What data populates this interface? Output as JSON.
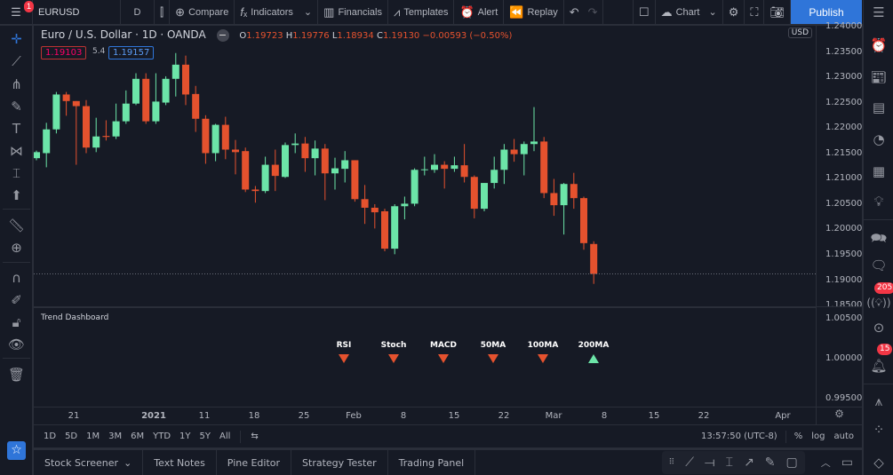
{
  "colors": {
    "up": "#6ce5a8",
    "down": "#e5522e",
    "accent": "#2f75d9",
    "background": "#161a25"
  },
  "topbar": {
    "menu_badge": "1",
    "symbol": "EURUSD",
    "interval": "D",
    "compare": "Compare",
    "indicators": "Indicators",
    "financials": "Financials",
    "templates": "Templates",
    "alert": "Alert",
    "replay": "Replay",
    "layout": "Chart",
    "publish": "Publish"
  },
  "legend": {
    "title": "Euro / U.S. Dollar · 1D · OANDA",
    "o_label": "O",
    "o": "1.19723",
    "h_label": "H",
    "h": "1.19776",
    "l_label": "L",
    "l": "1.18934",
    "c_label": "C",
    "c": "1.19130",
    "change": "−0.00593 (−0.50%)",
    "bid": "1.19103",
    "spread": "5.4",
    "ask": "1.19157"
  },
  "price_axis": {
    "currency": "USD",
    "labels": [
      "1.24000",
      "1.23500",
      "1.23000",
      "1.22500",
      "1.22000",
      "1.21500",
      "1.21000",
      "1.20500",
      "1.20000",
      "1.19500",
      "1.19000",
      "1.18500"
    ],
    "range": [
      1.1849,
      1.2404
    ]
  },
  "chart_data": {
    "type": "candlestick",
    "symbol": "EURUSD",
    "ylim": [
      1.1849,
      1.2404
    ],
    "ohlc": [
      [
        1.2142,
        1.2157,
        1.2138,
        1.2154
      ],
      [
        1.2152,
        1.2212,
        1.2124,
        1.2199
      ],
      [
        1.2199,
        1.2273,
        1.2191,
        1.2268
      ],
      [
        1.2268,
        1.2273,
        1.2226,
        1.2255
      ],
      [
        1.2255,
        1.2255,
        1.2129,
        1.2245
      ],
      [
        1.2245,
        1.2257,
        1.2152,
        1.2163
      ],
      [
        1.2163,
        1.2222,
        1.2154,
        1.2185
      ],
      [
        1.2186,
        1.2217,
        1.2177,
        1.2184
      ],
      [
        1.2185,
        1.225,
        1.218,
        1.2215
      ],
      [
        1.2215,
        1.2276,
        1.221,
        1.225
      ],
      [
        1.225,
        1.231,
        1.2247,
        1.2299
      ],
      [
        1.2299,
        1.231,
        1.221,
        1.2215
      ],
      [
        1.2215,
        1.231,
        1.221,
        1.2254
      ],
      [
        1.2252,
        1.2304,
        1.2247,
        1.2299
      ],
      [
        1.2299,
        1.235,
        1.2264,
        1.2327
      ],
      [
        1.2327,
        1.2345,
        1.2247,
        1.2268
      ],
      [
        1.2269,
        1.2285,
        1.2194,
        1.222
      ],
      [
        1.222,
        1.2227,
        1.2131,
        1.2152
      ],
      [
        1.2152,
        1.221,
        1.2136,
        1.2208
      ],
      [
        1.2208,
        1.2224,
        1.214,
        1.2159
      ],
      [
        1.2159,
        1.2178,
        1.211,
        1.2154
      ],
      [
        1.2156,
        1.2163,
        1.2075,
        1.208
      ],
      [
        1.208,
        1.2087,
        1.2054,
        1.2077
      ],
      [
        1.2077,
        1.2145,
        1.2073,
        1.2129
      ],
      [
        1.2129,
        1.2159,
        1.2077,
        1.2107
      ],
      [
        1.2105,
        1.2173,
        1.2103,
        1.2168
      ],
      [
        1.2168,
        1.2191,
        1.2152,
        1.2171
      ],
      [
        1.2171,
        1.2184,
        1.2115,
        1.2142
      ],
      [
        1.2142,
        1.2177,
        1.2108,
        1.2161
      ],
      [
        1.2161,
        1.217,
        1.2059,
        1.2112
      ],
      [
        1.2112,
        1.2143,
        1.208,
        1.2122
      ],
      [
        1.2121,
        1.2156,
        1.2094,
        1.2138
      ],
      [
        1.2138,
        1.2138,
        1.2056,
        1.2061
      ],
      [
        1.2061,
        1.2089,
        1.2012,
        1.2044
      ],
      [
        1.2044,
        1.2051,
        1.2003,
        1.2035
      ],
      [
        1.2037,
        1.2042,
        1.1958,
        1.1963
      ],
      [
        1.1963,
        1.2051,
        1.1952,
        1.2047
      ],
      [
        1.2047,
        1.2066,
        1.2021,
        1.2052
      ],
      [
        1.2052,
        1.2122,
        1.2047,
        1.2119
      ],
      [
        1.2119,
        1.2145,
        1.2108,
        1.212
      ],
      [
        1.2119,
        1.215,
        1.2113,
        1.2129
      ],
      [
        1.2129,
        1.2136,
        1.2082,
        1.2121
      ],
      [
        1.2121,
        1.2145,
        1.2115,
        1.2128
      ],
      [
        1.2128,
        1.217,
        1.2094,
        1.2105
      ],
      [
        1.2105,
        1.2108,
        1.2023,
        1.2042
      ],
      [
        1.2042,
        1.2093,
        1.2037,
        1.2093
      ],
      [
        1.2093,
        1.2145,
        1.2082,
        1.2119
      ],
      [
        1.2119,
        1.217,
        1.2091,
        1.2159
      ],
      [
        1.2159,
        1.218,
        1.2135,
        1.215
      ],
      [
        1.215,
        1.2175,
        1.2108,
        1.217
      ],
      [
        1.217,
        1.2243,
        1.2156,
        1.2175
      ],
      [
        1.2175,
        1.2184,
        1.2063,
        1.2073
      ],
      [
        1.2073,
        1.2101,
        1.2028,
        1.2049
      ],
      [
        1.2049,
        1.2093,
        1.1991,
        1.2091
      ],
      [
        1.2091,
        1.2113,
        1.2042,
        1.2063
      ],
      [
        1.2063,
        1.2066,
        1.1961,
        1.1974
      ],
      [
        1.19723,
        1.19776,
        1.18934,
        1.1913
      ]
    ]
  },
  "indicator": {
    "title": "Trend Dashboard",
    "axis_labels": [
      "1.00500",
      "1.00000",
      "0.99500"
    ],
    "items": [
      {
        "label": "RSI",
        "signal": "down"
      },
      {
        "label": "Stoch",
        "signal": "down"
      },
      {
        "label": "MACD",
        "signal": "down"
      },
      {
        "label": "50MA",
        "signal": "down"
      },
      {
        "label": "100MA",
        "signal": "down"
      },
      {
        "label": "200MA",
        "signal": "up"
      }
    ]
  },
  "time_axis": [
    "21",
    "2021",
    "11",
    "18",
    "25",
    "Feb",
    "8",
    "15",
    "22",
    "Mar",
    "8",
    "15",
    "22",
    "Apr"
  ],
  "range_bar": {
    "ranges": [
      "1D",
      "5D",
      "1M",
      "3M",
      "6M",
      "YTD",
      "1Y",
      "5Y",
      "All"
    ],
    "clock": "13:57:50 (UTC-8)",
    "percent": "%",
    "log": "log",
    "auto": "auto"
  },
  "bottom_tabs": [
    "Stock Screener",
    "Text Notes",
    "Pine Editor",
    "Strategy Tester",
    "Trading Panel"
  ],
  "right_sidebar": {
    "ideas_badge": "205",
    "alerts_badge": "15"
  }
}
